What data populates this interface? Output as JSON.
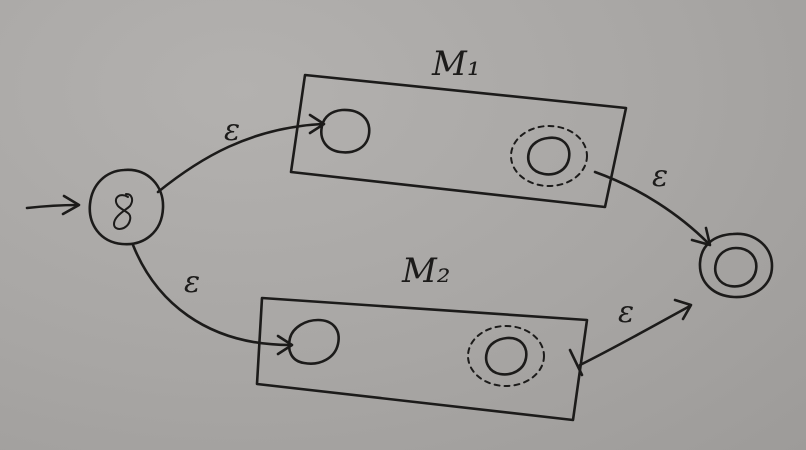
{
  "machines": {
    "m1": {
      "label": "M₁"
    },
    "m2": {
      "label": "M₂"
    }
  },
  "transitions": {
    "to_m1": "ε",
    "to_m2": "ε",
    "from_m1": "ε",
    "from_m2": "ε"
  }
}
